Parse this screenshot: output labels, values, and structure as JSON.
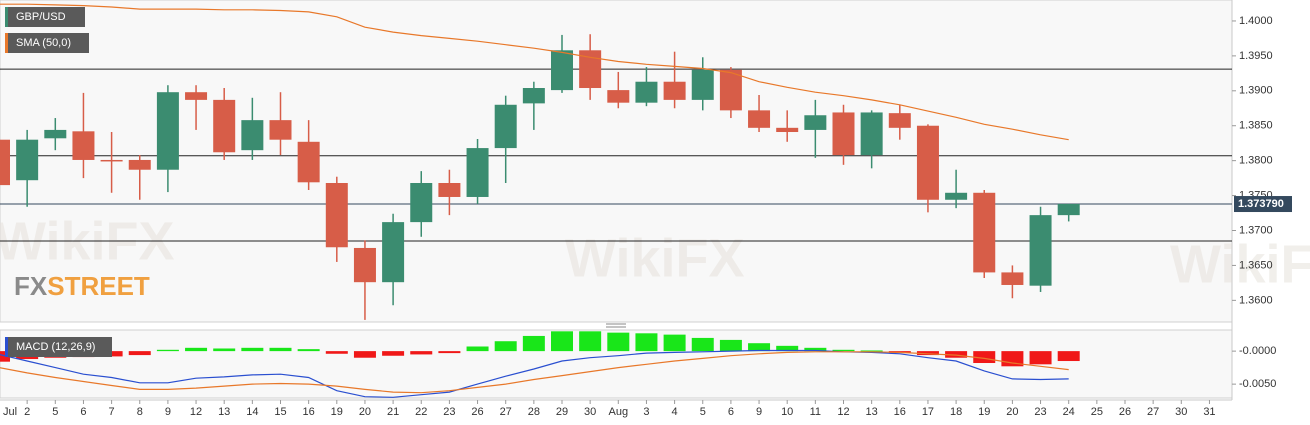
{
  "chart_data": {
    "type": "candlestick",
    "name": "GBP/USD",
    "up_color": "#3b8c70",
    "down_color": "#d75d48",
    "categories": [
      "Jul",
      "2",
      "5",
      "6",
      "7",
      "8",
      "9",
      "12",
      "13",
      "14",
      "15",
      "16",
      "19",
      "20",
      "21",
      "22",
      "23",
      "26",
      "27",
      "28",
      "29",
      "30",
      "Aug",
      "3",
      "4",
      "5",
      "6",
      "9",
      "10",
      "11",
      "12",
      "13",
      "16",
      "17",
      "18",
      "19",
      "20",
      "23",
      "24",
      "25",
      "26",
      "27",
      "30",
      "31"
    ],
    "open": [
      1.383,
      1.3772,
      1.3832,
      1.3842,
      1.3801,
      1.3801,
      1.3787,
      1.3898,
      1.3887,
      1.3815,
      1.3858,
      1.3827,
      1.3768,
      1.3675,
      1.3626,
      1.3712,
      1.3768,
      1.3748,
      1.3818,
      1.3882,
      1.3901,
      1.3958,
      1.3901,
      1.3883,
      1.3913,
      1.3887,
      1.393,
      1.3872,
      1.3847,
      1.3844,
      1.3869,
      1.3808,
      1.3868,
      1.385,
      1.3744,
      1.3754,
      1.364,
      1.3621,
      1.3722,
      null,
      null,
      null,
      null,
      null
    ],
    "high": [
      1.3845,
      1.3844,
      1.3861,
      1.3897,
      1.3841,
      1.3808,
      1.3908,
      1.3908,
      1.3904,
      1.389,
      1.3898,
      1.3858,
      1.3777,
      1.3686,
      1.3724,
      1.3785,
      1.3787,
      1.3831,
      1.3893,
      1.3913,
      1.398,
      1.3981,
      1.3927,
      1.3934,
      1.3956,
      1.3948,
      1.3934,
      1.3894,
      1.3872,
      1.3887,
      1.388,
      1.3872,
      1.388,
      1.3852,
      1.3787,
      1.3758,
      1.365,
      1.3734,
      1.3738,
      null,
      null,
      null,
      null,
      null
    ],
    "low": [
      1.375,
      1.3734,
      1.3815,
      1.3775,
      1.3754,
      1.3744,
      1.3755,
      1.3844,
      1.3801,
      1.3801,
      1.3808,
      1.3758,
      1.3655,
      1.3572,
      1.3593,
      1.3691,
      1.3722,
      1.3738,
      1.3768,
      1.3844,
      1.3897,
      1.3887,
      1.3875,
      1.3878,
      1.3875,
      1.3872,
      1.3861,
      1.3841,
      1.3827,
      1.3804,
      1.3794,
      1.3789,
      1.383,
      1.3726,
      1.3732,
      1.3632,
      1.3603,
      1.3612,
      1.3713,
      null,
      null,
      null,
      null,
      null
    ],
    "close": [
      1.3765,
      1.383,
      1.3844,
      1.3801,
      1.38,
      1.3787,
      1.3898,
      1.3887,
      1.3812,
      1.3858,
      1.383,
      1.3769,
      1.3676,
      1.3626,
      1.3712,
      1.3768,
      1.3748,
      1.3818,
      1.388,
      1.3904,
      1.3958,
      1.3904,
      1.3883,
      1.3913,
      1.3887,
      1.393,
      1.3872,
      1.3847,
      1.3841,
      1.3865,
      1.3808,
      1.3869,
      1.3847,
      1.3744,
      1.3754,
      1.364,
      1.3622,
      1.3722,
      1.3738,
      null,
      null,
      null,
      null,
      null
    ],
    "ylim": [
      1.3569,
      1.403
    ],
    "yticks": [
      {
        "value": 1.4,
        "label": "1.4000"
      },
      {
        "value": 1.395,
        "label": "1.3950"
      },
      {
        "value": 1.39,
        "label": "1.3900"
      },
      {
        "value": 1.385,
        "label": "1.3850"
      },
      {
        "value": 1.38,
        "label": "1.3800"
      },
      {
        "value": 1.375,
        "label": "1.3750"
      },
      {
        "value": 1.37,
        "label": "1.3700"
      },
      {
        "value": 1.365,
        "label": "1.3650"
      },
      {
        "value": 1.36,
        "label": "1.3600"
      }
    ],
    "levels": [
      1.3931,
      1.3807,
      1.3685
    ],
    "current_price": {
      "value": 1.37379,
      "label": "1.373790"
    },
    "sma": {
      "name": "SMA (50,0)",
      "color": "#e8782a",
      "values": [
        1.4024,
        1.4024,
        1.4023,
        1.4022,
        1.402,
        1.4017,
        1.4017,
        1.4017,
        1.4016,
        1.4016,
        1.4015,
        1.4013,
        1.4006,
        1.3991,
        1.3984,
        1.3979,
        1.3975,
        1.3971,
        1.3966,
        1.3961,
        1.3955,
        1.3948,
        1.3942,
        1.3938,
        1.3935,
        1.3932,
        1.3926,
        1.3913,
        1.3905,
        1.3898,
        1.3893,
        1.3887,
        1.388,
        1.3871,
        1.3862,
        1.3852,
        1.3845,
        1.3837,
        1.383,
        null,
        null,
        null,
        null,
        null
      ]
    },
    "macd": {
      "name": "MACD (12,26,9)",
      "ylim": [
        -0.0071,
        0.0032
      ],
      "yticks": [
        {
          "value": 0,
          "label": "-0.0000"
        },
        {
          "value": -0.005,
          "label": "-0.0050"
        }
      ],
      "pos_color": "#19e619",
      "neg_color": "#f01818",
      "macd_color": "#2a4fd0",
      "signal_color": "#e8782a",
      "histogram": [
        -0.0016,
        -0.0012,
        -0.001,
        -0.0009,
        -0.0008,
        -0.0006,
        0.0002,
        0.0005,
        0.0004,
        0.0005,
        0.0005,
        0.0003,
        -0.0004,
        -0.001,
        -0.0007,
        -0.0005,
        -0.0003,
        0.0007,
        0.0015,
        0.0023,
        0.003,
        0.003,
        0.0028,
        0.0027,
        0.0025,
        0.002,
        0.0017,
        0.0012,
        0.0008,
        0.0005,
        0.0002,
        0.0001,
        -0.0003,
        -0.0006,
        -0.001,
        -0.0018,
        -0.0023,
        -0.002,
        -0.0015,
        null,
        null,
        null,
        null,
        null
      ],
      "macd": [
        -0.0005,
        -0.0015,
        -0.0025,
        -0.0035,
        -0.004,
        -0.0048,
        -0.0048,
        -0.0041,
        -0.0039,
        -0.0036,
        -0.0035,
        -0.004,
        -0.006,
        -0.0069,
        -0.007,
        -0.0066,
        -0.0062,
        -0.005,
        -0.0038,
        -0.0027,
        -0.0015,
        -0.001,
        -0.0007,
        -0.0003,
        -0.0002,
        -0.0001,
        0.0,
        0.0001,
        0.0001,
        0.0001,
        -0.0001,
        -0.0002,
        -0.0004,
        -0.001,
        -0.0015,
        -0.003,
        -0.0042,
        -0.0043,
        -0.0042,
        null,
        null,
        null,
        null,
        null
      ],
      "signal": [
        -0.0025,
        -0.0033,
        -0.004,
        -0.0046,
        -0.0052,
        -0.0058,
        -0.0058,
        -0.0056,
        -0.0053,
        -0.005,
        -0.0049,
        -0.005,
        -0.0053,
        -0.0058,
        -0.0062,
        -0.0063,
        -0.006,
        -0.0055,
        -0.005,
        -0.0043,
        -0.0037,
        -0.0031,
        -0.0025,
        -0.002,
        -0.0015,
        -0.0011,
        -0.0007,
        -0.0004,
        -0.0002,
        -0.0001,
        -0.0001,
        -0.0001,
        -0.0002,
        -0.0004,
        -0.0006,
        -0.0011,
        -0.0018,
        -0.0023,
        -0.0028,
        null,
        null,
        null,
        null,
        null
      ]
    },
    "watermarks": [
      "WikiFX",
      "WikiFX",
      "WikiFX"
    ],
    "logo": [
      "FX",
      "STREET"
    ]
  }
}
